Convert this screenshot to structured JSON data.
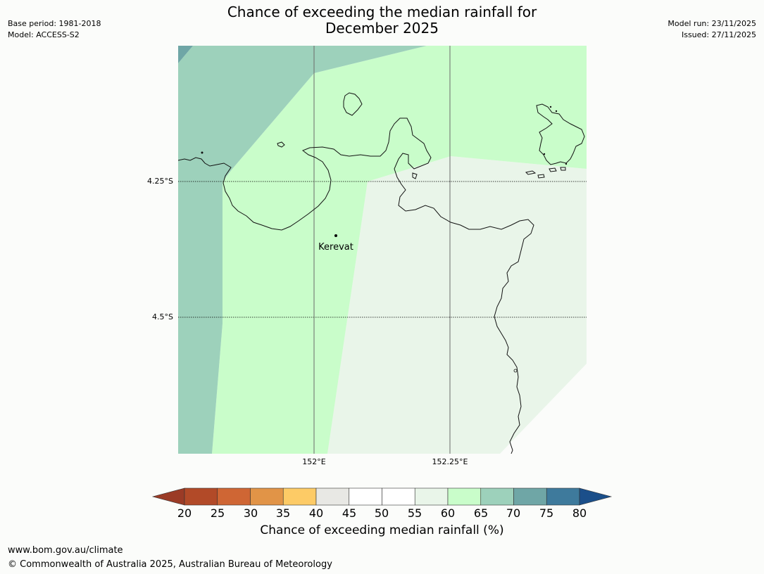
{
  "header": {
    "title_line1": "Chance of exceeding the median rainfall for",
    "title_line2": "December 2025",
    "base_period": "Base period: 1981-2018",
    "model": "Model: ACCESS-S2",
    "model_run": "Model run: 23/11/2025",
    "issued": "Issued: 27/11/2025"
  },
  "map": {
    "place_label": "Kerevat",
    "lat_labels": [
      "4.25°S",
      "4.5°S"
    ],
    "lon_labels": [
      "152°E",
      "152.25°E"
    ]
  },
  "colorbar": {
    "title": "Chance of exceeding median rainfall (%)",
    "ticks": [
      "20",
      "25",
      "30",
      "35",
      "40",
      "45",
      "50",
      "55",
      "60",
      "65",
      "70",
      "75",
      "80"
    ],
    "under_color": "#9b3b26",
    "over_color": "#1b4f8a",
    "colors": [
      "#b24a28",
      "#cf6634",
      "#e19447",
      "#fdcb66",
      "#e8e8e4",
      "#ffffff",
      "#ffffff",
      "#e9f5e9",
      "#c9fdca",
      "#9dd1bb",
      "#6fa6a6",
      "#3e7a9c"
    ]
  },
  "footer": {
    "url": "www.bom.gov.au/climate",
    "copyright": "© Commonwealth of Australia 2025, Australian Bureau of Meteorology"
  }
}
